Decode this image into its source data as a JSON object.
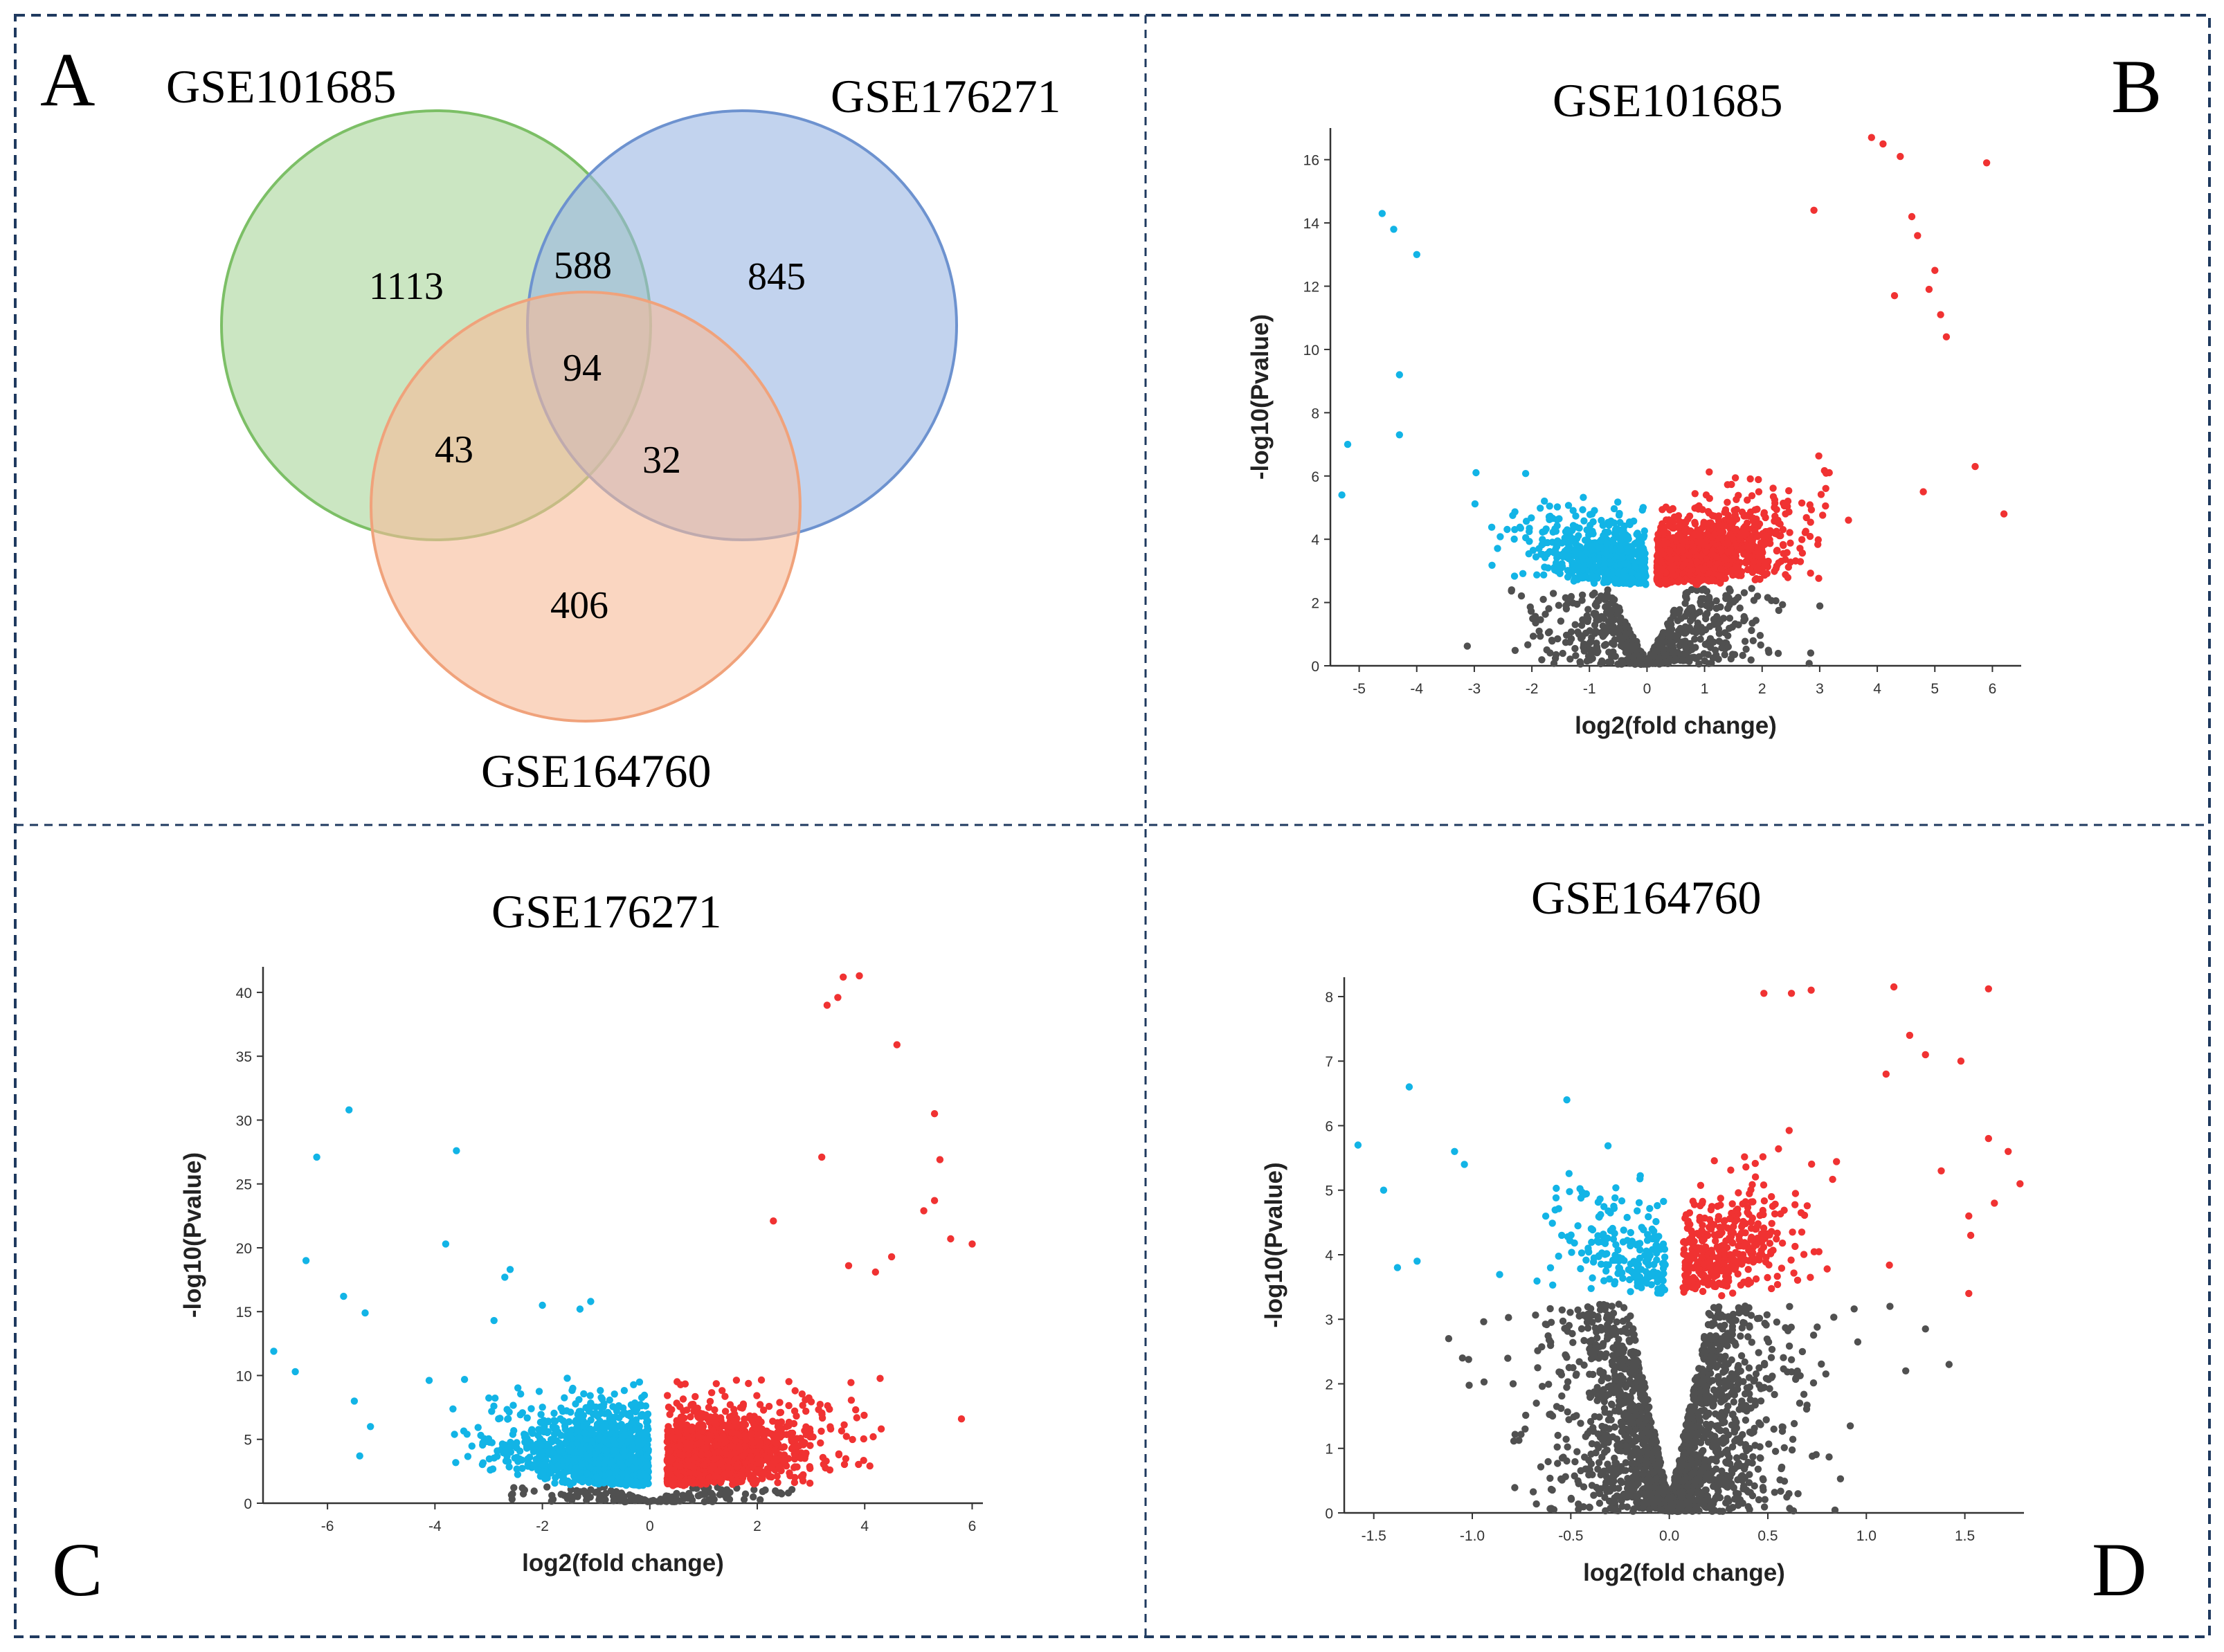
{
  "colors": {
    "frame": "#1f3a5f",
    "up": "#f03232",
    "down": "#12b4e6",
    "ns": "#505050",
    "axis": "#333333",
    "venn_green": "#a8d59a",
    "venn_blue": "#9ab6e2",
    "venn_orange": "#f7bb98"
  },
  "panels": {
    "A": {
      "letter": "A",
      "sets": [
        {
          "id": "green",
          "label": "GSE101685"
        },
        {
          "id": "blue",
          "label": "GSE176271"
        },
        {
          "id": "orange",
          "label": "GSE164760"
        }
      ],
      "regions": {
        "green_only": "1113",
        "green_blue": "588",
        "blue_only": "845",
        "all_three": "94",
        "green_orange": "43",
        "blue_orange": "32",
        "orange_only": "406"
      }
    },
    "B": {
      "letter": "B",
      "title": "GSE101685"
    },
    "C": {
      "letter": "C",
      "title": "GSE176271"
    },
    "D": {
      "letter": "D",
      "title": "GSE164760"
    }
  },
  "chart_data": [
    {
      "panel": "A",
      "type": "venn",
      "sets": [
        "GSE101685",
        "GSE176271",
        "GSE164760"
      ],
      "counts": {
        "GSE101685 only": 1113,
        "GSE101685 & GSE176271": 588,
        "GSE176271 only": 845,
        "all": 94,
        "GSE101685 & GSE164760": 43,
        "GSE176271 & GSE164760": 32,
        "GSE164760 only": 406
      }
    },
    {
      "panel": "B",
      "type": "scatter",
      "title": "GSE101685",
      "xlabel": "log2(fold change)",
      "ylabel": "-log10(Pvalue)",
      "xlim": [
        -5.5,
        6.5
      ],
      "ylim": [
        0,
        17
      ],
      "xticks": [
        -5,
        -4,
        -3,
        -2,
        -1,
        0,
        1,
        2,
        3,
        4,
        5,
        6
      ],
      "yticks": [
        0,
        2,
        4,
        6,
        8,
        10,
        12,
        14,
        16
      ],
      "threshold_y": 2.5,
      "sim": {
        "seed": 11,
        "sx": 0.9,
        "sy": 2.2,
        "dis_k": 2.1,
        "dis_p": 1.35,
        "dis_cap": 14.8,
        "noise": 0.8,
        "n_ns": 650,
        "n_down": 700,
        "n_up": 1500,
        "up_shift": 0.15,
        "up_mult": 1.1
      },
      "extra_points": [
        {
          "x": 3.9,
          "y": 16.7,
          "g": "up"
        },
        {
          "x": 4.1,
          "y": 16.5,
          "g": "up"
        },
        {
          "x": 4.4,
          "y": 16.1,
          "g": "up"
        },
        {
          "x": 5.9,
          "y": 15.9,
          "g": "up"
        },
        {
          "x": 4.6,
          "y": 14.2,
          "g": "up"
        },
        {
          "x": 2.9,
          "y": 14.4,
          "g": "up"
        },
        {
          "x": 4.7,
          "y": 13.6,
          "g": "up"
        },
        {
          "x": 5.0,
          "y": 12.5,
          "g": "up"
        },
        {
          "x": 4.9,
          "y": 11.9,
          "g": "up"
        },
        {
          "x": 4.3,
          "y": 11.7,
          "g": "up"
        },
        {
          "x": 5.1,
          "y": 11.1,
          "g": "up"
        },
        {
          "x": 5.2,
          "y": 10.4,
          "g": "up"
        },
        {
          "x": 5.7,
          "y": 6.3,
          "g": "up"
        },
        {
          "x": 4.8,
          "y": 5.5,
          "g": "up"
        },
        {
          "x": 6.2,
          "y": 4.8,
          "g": "up"
        },
        {
          "x": -4.6,
          "y": 14.3,
          "g": "down"
        },
        {
          "x": -4.4,
          "y": 13.8,
          "g": "down"
        },
        {
          "x": -4.0,
          "y": 13.0,
          "g": "down"
        },
        {
          "x": -5.2,
          "y": 7.0,
          "g": "down"
        },
        {
          "x": -5.3,
          "y": 5.4,
          "g": "down"
        },
        {
          "x": -4.3,
          "y": 9.2,
          "g": "down"
        },
        {
          "x": -4.3,
          "y": 7.3,
          "g": "down"
        }
      ]
    },
    {
      "panel": "C",
      "type": "scatter",
      "title": "GSE176271",
      "xlabel": "log2(fold change)",
      "ylabel": "-log10(Pvalue)",
      "xlim": [
        -7.2,
        6.2
      ],
      "ylim": [
        0,
        42
      ],
      "xticks": [
        -6,
        -4,
        -2,
        0,
        2,
        4,
        6
      ],
      "yticks": [
        0,
        5,
        10,
        15,
        20,
        25,
        30,
        35,
        40
      ],
      "threshold_y": 1.3,
      "sim": {
        "seed": 23,
        "sx": 1.2,
        "sy": 1.0,
        "dis_k": 1.8,
        "dis_p": 1.6,
        "dis_cap": 9.8,
        "noise": 2.6,
        "n_ns": 180,
        "n_down": 1300,
        "n_up": 1400,
        "up_shift": 0.3,
        "up_mult": 1.0
      },
      "extra_points": [
        {
          "x": 3.6,
          "y": 41.2,
          "g": "up"
        },
        {
          "x": 3.9,
          "y": 41.3,
          "g": "up"
        },
        {
          "x": 3.3,
          "y": 39.0,
          "g": "up"
        },
        {
          "x": 3.5,
          "y": 39.6,
          "g": "up"
        },
        {
          "x": 4.6,
          "y": 35.9,
          "g": "up"
        },
        {
          "x": 5.3,
          "y": 30.5,
          "g": "up"
        },
        {
          "x": 3.2,
          "y": 27.1,
          "g": "up"
        },
        {
          "x": 5.4,
          "y": 26.9,
          "g": "up"
        },
        {
          "x": 5.1,
          "y": 22.9,
          "g": "up"
        },
        {
          "x": 5.3,
          "y": 23.7,
          "g": "up"
        },
        {
          "x": 2.3,
          "y": 22.1,
          "g": "up"
        },
        {
          "x": 5.6,
          "y": 20.7,
          "g": "up"
        },
        {
          "x": 6.0,
          "y": 20.3,
          "g": "up"
        },
        {
          "x": 4.5,
          "y": 19.3,
          "g": "up"
        },
        {
          "x": 3.7,
          "y": 18.6,
          "g": "up"
        },
        {
          "x": 4.2,
          "y": 18.1,
          "g": "up"
        },
        {
          "x": 5.8,
          "y": 6.6,
          "g": "up"
        },
        {
          "x": -5.6,
          "y": 30.8,
          "g": "down"
        },
        {
          "x": -3.6,
          "y": 27.6,
          "g": "down"
        },
        {
          "x": -6.2,
          "y": 27.1,
          "g": "down"
        },
        {
          "x": -3.8,
          "y": 20.3,
          "g": "down"
        },
        {
          "x": -6.4,
          "y": 19.0,
          "g": "down"
        },
        {
          "x": -2.6,
          "y": 18.3,
          "g": "down"
        },
        {
          "x": -2.7,
          "y": 17.7,
          "g": "down"
        },
        {
          "x": -5.7,
          "y": 16.2,
          "g": "down"
        },
        {
          "x": -1.1,
          "y": 15.8,
          "g": "down"
        },
        {
          "x": -2.0,
          "y": 15.5,
          "g": "down"
        },
        {
          "x": -1.3,
          "y": 15.2,
          "g": "down"
        },
        {
          "x": -5.3,
          "y": 14.9,
          "g": "down"
        },
        {
          "x": -2.9,
          "y": 14.3,
          "g": "down"
        },
        {
          "x": -7.0,
          "y": 11.9,
          "g": "down"
        },
        {
          "x": -6.6,
          "y": 10.3,
          "g": "down"
        },
        {
          "x": -5.2,
          "y": 6.0,
          "g": "down"
        },
        {
          "x": -5.4,
          "y": 3.7,
          "g": "down"
        },
        {
          "x": -5.5,
          "y": 8.0,
          "g": "down"
        }
      ]
    },
    {
      "panel": "D",
      "type": "scatter",
      "title": "GSE164760",
      "xlabel": "log2(fold change)",
      "ylabel": "-log10(Pvalue)",
      "xlim": [
        -1.65,
        1.8
      ],
      "ylim": [
        0,
        8.3
      ],
      "xticks": [
        -1.5,
        -1.0,
        -0.5,
        0.0,
        0.5,
        1.0,
        1.5
      ],
      "yticks": [
        0,
        1,
        2,
        3,
        4,
        5,
        6,
        7,
        8
      ],
      "threshold_y": 3.3,
      "sim": {
        "seed": 37,
        "sx": 0.28,
        "sy": 1.15,
        "dis_k": 6.5,
        "dis_p": 1.1,
        "dis_cap": 6.7,
        "noise": 0.65,
        "n_ns": 1900,
        "n_down": 200,
        "n_up": 380,
        "up_shift": 0.05,
        "up_mult": 1.1
      },
      "extra_points": [
        {
          "x": 0.62,
          "y": 8.05,
          "g": "up"
        },
        {
          "x": 0.72,
          "y": 8.1,
          "g": "up"
        },
        {
          "x": 1.14,
          "y": 8.15,
          "g": "up"
        },
        {
          "x": 1.62,
          "y": 8.12,
          "g": "up"
        },
        {
          "x": 0.48,
          "y": 8.05,
          "g": "up"
        },
        {
          "x": 1.22,
          "y": 7.4,
          "g": "up"
        },
        {
          "x": 1.3,
          "y": 7.1,
          "g": "up"
        },
        {
          "x": 1.48,
          "y": 7.0,
          "g": "up"
        },
        {
          "x": 1.1,
          "y": 6.8,
          "g": "up"
        },
        {
          "x": 1.72,
          "y": 5.6,
          "g": "up"
        },
        {
          "x": 1.62,
          "y": 5.8,
          "g": "up"
        },
        {
          "x": 1.78,
          "y": 5.1,
          "g": "up"
        },
        {
          "x": 1.38,
          "y": 5.3,
          "g": "up"
        },
        {
          "x": 1.52,
          "y": 4.6,
          "g": "up"
        },
        {
          "x": 1.53,
          "y": 4.3,
          "g": "up"
        },
        {
          "x": 1.52,
          "y": 3.4,
          "g": "up"
        },
        {
          "x": 1.65,
          "y": 4.8,
          "g": "up"
        },
        {
          "x": -1.32,
          "y": 6.6,
          "g": "down"
        },
        {
          "x": -1.58,
          "y": 5.7,
          "g": "down"
        },
        {
          "x": -1.45,
          "y": 5.0,
          "g": "down"
        },
        {
          "x": -1.38,
          "y": 3.8,
          "g": "down"
        },
        {
          "x": -0.52,
          "y": 6.4,
          "g": "down"
        },
        {
          "x": -1.28,
          "y": 3.9,
          "g": "down"
        },
        {
          "x": -1.09,
          "y": 5.6,
          "g": "down"
        },
        {
          "x": -1.04,
          "y": 5.4,
          "g": "down"
        },
        {
          "x": 1.3,
          "y": 2.85,
          "g": "ns"
        },
        {
          "x": 1.2,
          "y": 2.2,
          "g": "ns"
        },
        {
          "x": 1.42,
          "y": 2.3,
          "g": "ns"
        },
        {
          "x": 1.12,
          "y": 3.2,
          "g": "ns"
        },
        {
          "x": -1.05,
          "y": 2.4,
          "g": "ns"
        },
        {
          "x": -1.12,
          "y": 2.7,
          "g": "ns"
        }
      ]
    }
  ]
}
